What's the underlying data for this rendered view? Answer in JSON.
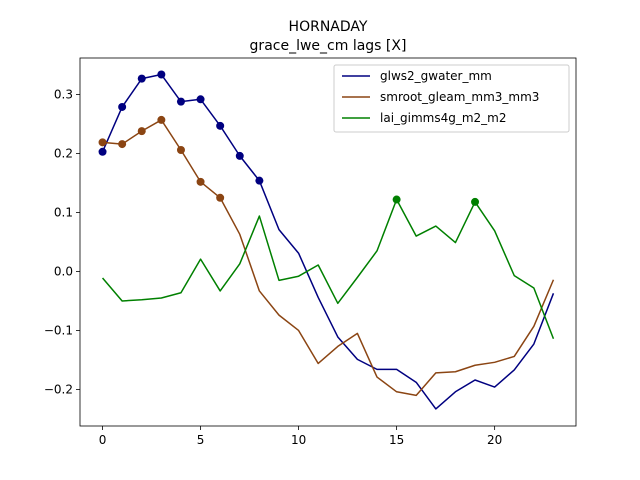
{
  "chart_data": {
    "type": "line",
    "title": "HORNADAY",
    "subtitle": "grace_lwe_cm lags [X]",
    "xlabel": "",
    "ylabel": "",
    "xlim": [
      -1.15,
      24.15
    ],
    "ylim": [
      -0.262,
      0.362
    ],
    "x_ticks": [
      0,
      5,
      10,
      15,
      20
    ],
    "y_ticks": [
      -0.2,
      -0.1,
      0.0,
      0.1,
      0.2,
      0.3
    ],
    "y_tick_labels": [
      "−0.2",
      "−0.1",
      "0.0",
      "0.1",
      "0.2",
      "0.3"
    ],
    "grid": false,
    "legend": "upper-right",
    "x": [
      0,
      1,
      2,
      3,
      4,
      5,
      6,
      7,
      8,
      9,
      10,
      11,
      12,
      13,
      14,
      15,
      16,
      17,
      18,
      19,
      20,
      21,
      22,
      23
    ],
    "series": [
      {
        "name": "glws2_gwater_mm",
        "color": "#000080",
        "values": [
          0.203,
          0.279,
          0.327,
          0.334,
          0.288,
          0.292,
          0.247,
          0.196,
          0.154,
          0.071,
          0.031,
          -0.044,
          -0.111,
          -0.149,
          -0.166,
          -0.166,
          -0.188,
          -0.233,
          -0.204,
          -0.184,
          -0.196,
          -0.167,
          -0.123,
          -0.037
        ],
        "markers": [
          0,
          1,
          2,
          3,
          4,
          5,
          6,
          7,
          8
        ]
      },
      {
        "name": "smroot_gleam_mm3_mm3",
        "color": "#8B4513",
        "values": [
          0.219,
          0.216,
          0.238,
          0.257,
          0.206,
          0.152,
          0.125,
          0.063,
          -0.033,
          -0.074,
          -0.1,
          -0.156,
          -0.127,
          -0.105,
          -0.179,
          -0.204,
          -0.21,
          -0.172,
          -0.17,
          -0.159,
          -0.154,
          -0.144,
          -0.093,
          -0.014
        ],
        "markers": [
          0,
          1,
          2,
          3,
          4,
          5,
          6
        ]
      },
      {
        "name": "lai_gimms4g_m2_m2",
        "color": "#008000",
        "values": [
          -0.011,
          -0.05,
          -0.048,
          -0.045,
          -0.036,
          0.021,
          -0.033,
          0.013,
          0.094,
          -0.015,
          -0.008,
          0.011,
          -0.054,
          -0.01,
          0.035,
          0.122,
          0.06,
          0.077,
          0.049,
          0.118,
          0.069,
          -0.007,
          -0.028,
          -0.114
        ],
        "markers": [
          15,
          19
        ]
      }
    ]
  }
}
